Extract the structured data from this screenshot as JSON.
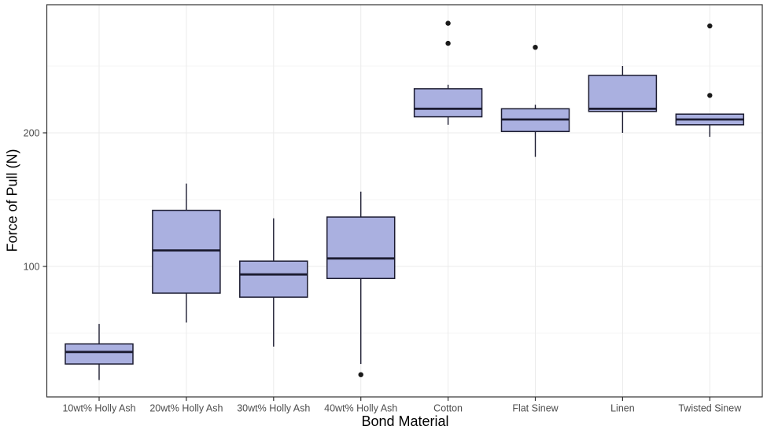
{
  "chart_data": {
    "type": "boxplot",
    "title": "",
    "xlabel": "Bond Material",
    "ylabel": "Force of Pull (N)",
    "legend": "none",
    "grid": "on",
    "ylim": [
      2,
      296
    ],
    "y_ticks": [
      100,
      200
    ],
    "y_minor_gridlines": [
      50,
      150,
      250
    ],
    "categories": [
      "10wt% Holly Ash",
      "20wt% Holly Ash",
      "30wt% Holly Ash",
      "40wt% Holly Ash",
      "Cotton",
      "Flat Sinew",
      "Linen",
      "Twisted Sinew"
    ],
    "series": [
      {
        "name": "10wt% Holly Ash",
        "whisker_low": 15,
        "q1": 27,
        "median": 36,
        "q3": 42,
        "whisker_high": 57,
        "outliers": []
      },
      {
        "name": "20wt% Holly Ash",
        "whisker_low": 58,
        "q1": 80,
        "median": 112,
        "q3": 142,
        "whisker_high": 162,
        "outliers": []
      },
      {
        "name": "30wt% Holly Ash",
        "whisker_low": 40,
        "q1": 77,
        "median": 94,
        "q3": 104,
        "whisker_high": 136,
        "outliers": []
      },
      {
        "name": "40wt% Holly Ash",
        "whisker_low": 27,
        "q1": 91,
        "median": 106,
        "q3": 137,
        "whisker_high": 156,
        "outliers": [
          19
        ]
      },
      {
        "name": "Cotton",
        "whisker_low": 206,
        "q1": 212,
        "median": 218,
        "q3": 233,
        "whisker_high": 236,
        "outliers": [
          267,
          282
        ]
      },
      {
        "name": "Flat Sinew",
        "whisker_low": 182,
        "q1": 201,
        "median": 210,
        "q3": 218,
        "whisker_high": 221,
        "outliers": [
          264
        ]
      },
      {
        "name": "Linen",
        "whisker_low": 200,
        "q1": 216,
        "median": 218,
        "q3": 243,
        "whisker_high": 250,
        "outliers": []
      },
      {
        "name": "Twisted Sinew",
        "whisker_low": 197,
        "q1": 206,
        "median": 210,
        "q3": 214,
        "whisker_high": 214,
        "outliers": [
          228,
          280
        ]
      }
    ],
    "colors": {
      "box_fill": "#AAB0E0",
      "box_stroke": "#1B1B30",
      "outlier": "#1A1A1A",
      "grid_major": "#EBEBEB",
      "grid_minor": "#F6F6F6",
      "panel_border": "#333333",
      "tick_text": "#4D4D4D",
      "axis_title_text": "#000000",
      "panel_background": "#FFFFFF"
    }
  }
}
